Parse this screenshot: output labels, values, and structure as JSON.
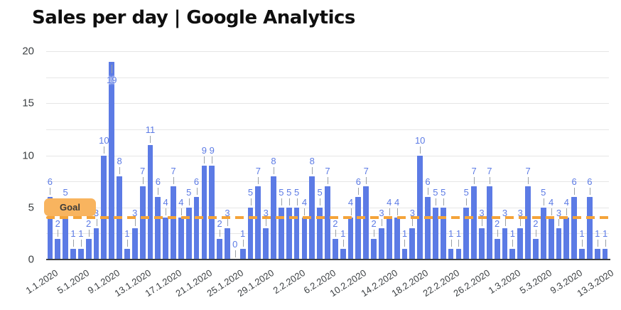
{
  "title": "Sales per day | Google Analytics",
  "goal": {
    "label": "Goal",
    "value": 4
  },
  "colors": {
    "bar": "#5c7be5",
    "bar_label": "#5c7be5",
    "goal_dash": "#f4a43a",
    "goal_badge_bg": "#f8b45f",
    "gridline": "#e6e6e6",
    "axis_text": "#3c4043",
    "title_text": "#0f0f0f"
  },
  "chart_data": {
    "type": "bar",
    "title": "Sales per day | Google Analytics",
    "xlabel": "",
    "ylabel": "",
    "ylim": [
      0,
      20
    ],
    "y_ticks": [
      0,
      5,
      10,
      15,
      20
    ],
    "grid_step": 2.5,
    "legend": "none",
    "goal_line": {
      "value": 4,
      "label": "Goal",
      "style": "dashed-orange"
    },
    "tick_every": 4,
    "tick_labels": [
      "1.1.2020",
      "5.1.2020",
      "9.1.2020",
      "13.1.2020",
      "17.1.2020",
      "21.1.2020",
      "25.1.2020",
      "29.1.2020",
      "2.2.2020",
      "6.2.2020",
      "10.2.2020",
      "14.2.2020",
      "18.2.2020",
      "22.2.2020",
      "26.2.2020",
      "1.3.2020",
      "5.3.2020",
      "9.3.2020",
      "13.3.2020"
    ],
    "x": [
      "1.1.2020",
      "2.1.2020",
      "3.1.2020",
      "4.1.2020",
      "5.1.2020",
      "6.1.2020",
      "7.1.2020",
      "8.1.2020",
      "9.1.2020",
      "10.1.2020",
      "11.1.2020",
      "12.1.2020",
      "13.1.2020",
      "14.1.2020",
      "15.1.2020",
      "16.1.2020",
      "17.1.2020",
      "18.1.2020",
      "19.1.2020",
      "20.1.2020",
      "21.1.2020",
      "22.1.2020",
      "23.1.2020",
      "24.1.2020",
      "25.1.2020",
      "26.1.2020",
      "27.1.2020",
      "28.1.2020",
      "29.1.2020",
      "30.1.2020",
      "31.1.2020",
      "1.2.2020",
      "2.2.2020",
      "3.2.2020",
      "4.2.2020",
      "5.2.2020",
      "6.2.2020",
      "7.2.2020",
      "8.2.2020",
      "9.2.2020",
      "10.2.2020",
      "11.2.2020",
      "12.2.2020",
      "13.2.2020",
      "14.2.2020",
      "15.2.2020",
      "16.2.2020",
      "17.2.2020",
      "18.2.2020",
      "19.2.2020",
      "20.2.2020",
      "21.2.2020",
      "22.2.2020",
      "23.2.2020",
      "24.2.2020",
      "25.2.2020",
      "26.2.2020",
      "27.2.2020",
      "28.2.2020",
      "29.2.2020",
      "1.3.2020",
      "2.3.2020",
      "3.3.2020",
      "4.3.2020",
      "5.3.2020",
      "6.3.2020",
      "7.3.2020",
      "8.3.2020",
      "9.3.2020",
      "10.3.2020",
      "11.3.2020",
      "12.3.2020",
      "13.3.2020"
    ],
    "values": [
      6,
      2,
      5,
      1,
      1,
      2,
      3,
      10,
      19,
      8,
      1,
      3,
      7,
      11,
      6,
      4,
      7,
      4,
      5,
      6,
      9,
      9,
      2,
      3,
      0,
      1,
      5,
      7,
      3,
      8,
      5,
      5,
      5,
      4,
      8,
      5,
      7,
      2,
      1,
      4,
      6,
      7,
      2,
      3,
      4,
      4,
      1,
      3,
      10,
      6,
      5,
      5,
      1,
      1,
      5,
      7,
      3,
      7,
      2,
      3,
      1,
      3,
      7,
      2,
      5,
      4,
      3,
      4,
      6,
      1,
      6,
      1,
      1
    ]
  }
}
